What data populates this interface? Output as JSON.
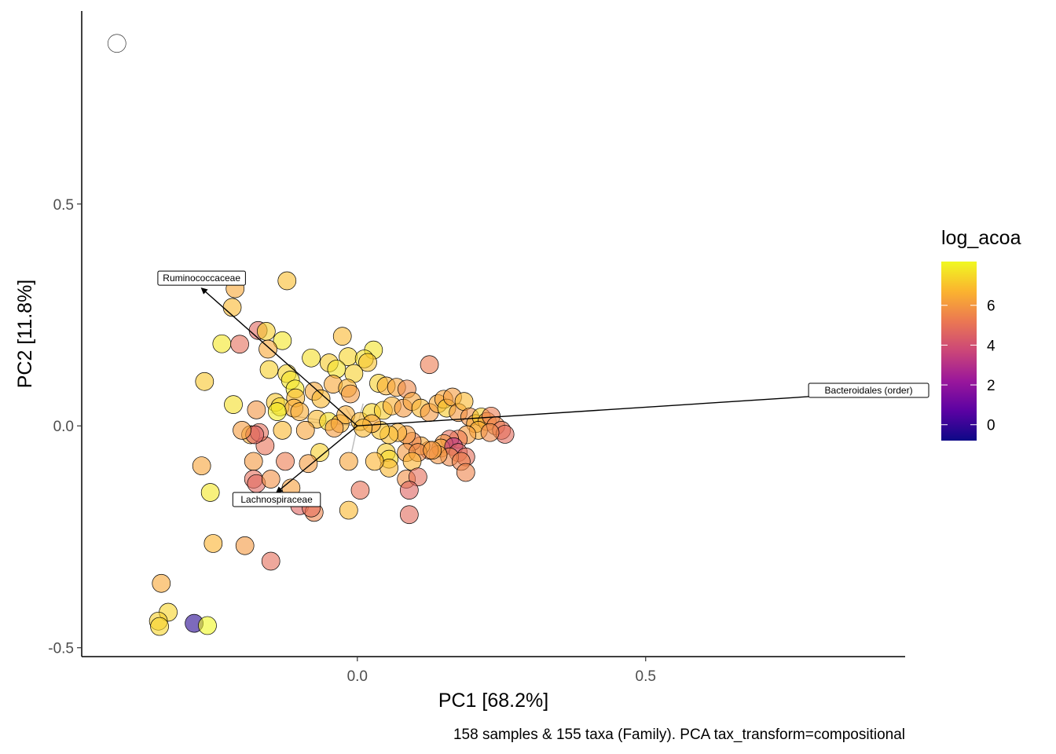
{
  "chart_data": {
    "type": "scatter",
    "title": "",
    "xlabel": "PC1 [68.2%]",
    "ylabel": "PC2 [11.8%]",
    "caption": "158 samples & 155 taxa (Family). PCA tax_transform=compositional",
    "xlim": [
      -0.478,
      0.95
    ],
    "ylim": [
      -0.52,
      0.935
    ],
    "x_ticks": [
      0.0,
      0.5
    ],
    "x_tick_labels": [
      "0.0",
      "0.5"
    ],
    "y_ticks": [
      -0.5,
      0.0,
      0.5
    ],
    "y_tick_labels": [
      "-0.5",
      "0.0",
      "0.5"
    ],
    "grid": false,
    "legend": {
      "title": "log_acoa",
      "position": "right",
      "range": [
        -0.8,
        8.2
      ],
      "ticks": [
        0,
        2,
        4,
        6
      ],
      "tick_labels": [
        "0",
        "2",
        "4",
        "6"
      ],
      "colors": [
        "#0D0887",
        "#5B02A3",
        "#9A179B",
        "#CB4678",
        "#EB7852",
        "#FBB32F",
        "#F0F921"
      ]
    },
    "loadings": [
      {
        "label": "Bacteroidales (order)",
        "x": 0.95,
        "y": 0.08
      },
      {
        "label": "Ruminococcaceae",
        "x": -0.27,
        "y": 0.31
      },
      {
        "label": "Lachnospiraceae",
        "x": -0.14,
        "y": -0.15
      }
    ],
    "minor_loadings": [
      {
        "x": -0.15,
        "y": 0.03
      },
      {
        "x": -0.02,
        "y": 0.04
      },
      {
        "x": -0.01,
        "y": -0.06
      },
      {
        "x": 0.01,
        "y": 0.05
      },
      {
        "x": -0.09,
        "y": 0.01
      }
    ],
    "points": [
      {
        "x": -0.417,
        "y": 0.862,
        "c": null
      },
      {
        "x": -0.122,
        "y": 0.327,
        "c": 6.9
      },
      {
        "x": -0.212,
        "y": 0.309,
        "c": 6.4
      },
      {
        "x": -0.217,
        "y": 0.267,
        "c": 6.8
      },
      {
        "x": -0.172,
        "y": 0.215,
        "c": 4.7
      },
      {
        "x": -0.158,
        "y": 0.213,
        "c": 7.3
      },
      {
        "x": -0.13,
        "y": 0.192,
        "c": 7.8
      },
      {
        "x": -0.235,
        "y": 0.185,
        "c": 7.8
      },
      {
        "x": -0.204,
        "y": 0.184,
        "c": 4.9
      },
      {
        "x": -0.155,
        "y": 0.173,
        "c": 6.4
      },
      {
        "x": -0.026,
        "y": 0.202,
        "c": 6.8
      },
      {
        "x": 0.028,
        "y": 0.171,
        "c": 7.7
      },
      {
        "x": 0.125,
        "y": 0.138,
        "c": 5.3
      },
      {
        "x": -0.08,
        "y": 0.153,
        "c": 7.6
      },
      {
        "x": -0.049,
        "y": 0.142,
        "c": 7.2
      },
      {
        "x": -0.016,
        "y": 0.156,
        "c": 7.4
      },
      {
        "x": 0.012,
        "y": 0.151,
        "c": 7.6
      },
      {
        "x": 0.018,
        "y": 0.143,
        "c": 7.0
      },
      {
        "x": -0.153,
        "y": 0.127,
        "c": 7.3
      },
      {
        "x": -0.122,
        "y": 0.118,
        "c": 7.4
      },
      {
        "x": -0.036,
        "y": 0.128,
        "c": 7.7
      },
      {
        "x": -0.006,
        "y": 0.118,
        "c": 7.3
      },
      {
        "x": -0.116,
        "y": 0.103,
        "c": 7.7
      },
      {
        "x": -0.108,
        "y": 0.083,
        "c": 7.8
      },
      {
        "x": -0.107,
        "y": 0.063,
        "c": 6.8
      },
      {
        "x": -0.142,
        "y": 0.053,
        "c": 7.1
      },
      {
        "x": -0.134,
        "y": 0.043,
        "c": 7.5
      },
      {
        "x": -0.11,
        "y": 0.04,
        "c": 6.5
      },
      {
        "x": -0.075,
        "y": 0.078,
        "c": 6.4
      },
      {
        "x": -0.063,
        "y": 0.061,
        "c": 6.8
      },
      {
        "x": -0.042,
        "y": 0.094,
        "c": 6.4
      },
      {
        "x": -0.017,
        "y": 0.085,
        "c": 6.7
      },
      {
        "x": -0.012,
        "y": 0.072,
        "c": 6.0
      },
      {
        "x": 0.037,
        "y": 0.096,
        "c": 7.3
      },
      {
        "x": 0.05,
        "y": 0.09,
        "c": 6.6
      },
      {
        "x": 0.068,
        "y": 0.087,
        "c": 6.3
      },
      {
        "x": 0.086,
        "y": 0.083,
        "c": 5.6
      },
      {
        "x": -0.265,
        "y": 0.1,
        "c": 7.1
      },
      {
        "x": -0.215,
        "y": 0.048,
        "c": 7.6
      },
      {
        "x": -0.175,
        "y": 0.036,
        "c": 5.9
      },
      {
        "x": -0.139,
        "y": 0.032,
        "c": 7.9
      },
      {
        "x": -0.1,
        "y": 0.032,
        "c": 6.5
      },
      {
        "x": -0.07,
        "y": 0.015,
        "c": 6.8
      },
      {
        "x": -0.05,
        "y": 0.01,
        "c": 7.6
      },
      {
        "x": -0.03,
        "y": 0.005,
        "c": 6.7
      },
      {
        "x": -0.02,
        "y": 0.025,
        "c": 6.5
      },
      {
        "x": 0.005,
        "y": 0.01,
        "c": 6.8
      },
      {
        "x": 0.025,
        "y": 0.03,
        "c": 7.4
      },
      {
        "x": 0.045,
        "y": 0.035,
        "c": 7.2
      },
      {
        "x": 0.06,
        "y": 0.045,
        "c": 6.6
      },
      {
        "x": 0.08,
        "y": 0.04,
        "c": 6.0
      },
      {
        "x": 0.095,
        "y": 0.055,
        "c": 6.3
      },
      {
        "x": 0.11,
        "y": 0.04,
        "c": 6.8
      },
      {
        "x": 0.125,
        "y": 0.03,
        "c": 6.0
      },
      {
        "x": 0.14,
        "y": 0.05,
        "c": 6.4
      },
      {
        "x": 0.15,
        "y": 0.06,
        "c": 6.3
      },
      {
        "x": 0.155,
        "y": 0.04,
        "c": 7.2
      },
      {
        "x": 0.165,
        "y": 0.065,
        "c": 6.1
      },
      {
        "x": 0.175,
        "y": 0.03,
        "c": 6.0
      },
      {
        "x": 0.185,
        "y": 0.055,
        "c": 6.8
      },
      {
        "x": 0.195,
        "y": 0.02,
        "c": 5.8
      },
      {
        "x": 0.205,
        "y": 0.005,
        "c": 6.5
      },
      {
        "x": 0.215,
        "y": 0.02,
        "c": 7.3
      },
      {
        "x": 0.225,
        "y": 0.01,
        "c": 6.2
      },
      {
        "x": 0.232,
        "y": 0.022,
        "c": 5.3
      },
      {
        "x": 0.24,
        "y": 0.0,
        "c": 5.6
      },
      {
        "x": 0.25,
        "y": -0.01,
        "c": 5.0
      },
      {
        "x": 0.256,
        "y": -0.019,
        "c": 4.8
      },
      {
        "x": 0.21,
        "y": -0.01,
        "c": 6.5
      },
      {
        "x": 0.23,
        "y": -0.015,
        "c": 5.6
      },
      {
        "x": 0.19,
        "y": -0.02,
        "c": 6.1
      },
      {
        "x": 0.175,
        "y": -0.03,
        "c": 5.2
      },
      {
        "x": 0.16,
        "y": -0.03,
        "c": 4.9
      },
      {
        "x": 0.15,
        "y": -0.04,
        "c": 5.9
      },
      {
        "x": 0.145,
        "y": -0.05,
        "c": 6.3
      },
      {
        "x": 0.167,
        "y": -0.047,
        "c": 3.2
      },
      {
        "x": 0.175,
        "y": -0.06,
        "c": 4.6
      },
      {
        "x": 0.188,
        "y": -0.07,
        "c": 4.9
      },
      {
        "x": 0.16,
        "y": -0.07,
        "c": 5.6
      },
      {
        "x": 0.14,
        "y": -0.065,
        "c": 5.9
      },
      {
        "x": 0.125,
        "y": -0.055,
        "c": 5.3
      },
      {
        "x": 0.11,
        "y": -0.045,
        "c": 6.4
      },
      {
        "x": 0.095,
        "y": -0.035,
        "c": 5.4
      },
      {
        "x": 0.085,
        "y": -0.02,
        "c": 6.1
      },
      {
        "x": 0.07,
        "y": -0.015,
        "c": 6.6
      },
      {
        "x": 0.055,
        "y": -0.02,
        "c": 6.9
      },
      {
        "x": 0.04,
        "y": -0.01,
        "c": 7.0
      },
      {
        "x": 0.025,
        "y": 0.005,
        "c": 6.3
      },
      {
        "x": 0.01,
        "y": -0.005,
        "c": 6.8
      },
      {
        "x": 0.05,
        "y": -0.06,
        "c": 7.2
      },
      {
        "x": 0.055,
        "y": -0.075,
        "c": 7.5
      },
      {
        "x": 0.085,
        "y": -0.06,
        "c": 6.0
      },
      {
        "x": 0.105,
        "y": -0.06,
        "c": 5.6
      },
      {
        "x": 0.13,
        "y": -0.055,
        "c": 6.2
      },
      {
        "x": 0.095,
        "y": -0.08,
        "c": 6.7
      },
      {
        "x": 0.055,
        "y": -0.095,
        "c": 6.8
      },
      {
        "x": 0.085,
        "y": -0.12,
        "c": 5.8
      },
      {
        "x": 0.105,
        "y": -0.115,
        "c": 4.9
      },
      {
        "x": 0.18,
        "y": -0.08,
        "c": 5.4
      },
      {
        "x": 0.188,
        "y": -0.105,
        "c": 5.5
      },
      {
        "x": 0.09,
        "y": -0.145,
        "c": 4.6
      },
      {
        "x": 0.09,
        "y": -0.2,
        "c": 4.8
      },
      {
        "x": 0.03,
        "y": -0.08,
        "c": 6.7
      },
      {
        "x": -0.015,
        "y": -0.08,
        "c": 6.3
      },
      {
        "x": 0.005,
        "y": -0.145,
        "c": 5.0
      },
      {
        "x": -0.015,
        "y": -0.19,
        "c": 6.8
      },
      {
        "x": -0.065,
        "y": -0.06,
        "c": 7.3
      },
      {
        "x": -0.085,
        "y": -0.085,
        "c": 6.1
      },
      {
        "x": -0.125,
        "y": -0.08,
        "c": 5.3
      },
      {
        "x": -0.16,
        "y": -0.045,
        "c": 5.0
      },
      {
        "x": -0.185,
        "y": -0.02,
        "c": 6.5
      },
      {
        "x": -0.17,
        "y": -0.015,
        "c": 4.9
      },
      {
        "x": -0.178,
        "y": -0.02,
        "c": 4.5
      },
      {
        "x": -0.2,
        "y": -0.01,
        "c": 6.1
      },
      {
        "x": -0.13,
        "y": -0.01,
        "c": 6.8
      },
      {
        "x": -0.09,
        "y": -0.01,
        "c": 6.3
      },
      {
        "x": -0.04,
        "y": -0.005,
        "c": 6.1
      },
      {
        "x": -0.18,
        "y": -0.08,
        "c": 6.0
      },
      {
        "x": -0.27,
        "y": -0.09,
        "c": 6.3
      },
      {
        "x": -0.18,
        "y": -0.12,
        "c": 4.9
      },
      {
        "x": -0.175,
        "y": -0.13,
        "c": 4.7
      },
      {
        "x": -0.15,
        "y": -0.12,
        "c": 5.8
      },
      {
        "x": -0.115,
        "y": -0.14,
        "c": 6.2
      },
      {
        "x": -0.255,
        "y": -0.15,
        "c": 7.8
      },
      {
        "x": -0.1,
        "y": -0.18,
        "c": 4.6
      },
      {
        "x": -0.075,
        "y": -0.195,
        "c": 5.5
      },
      {
        "x": -0.08,
        "y": -0.185,
        "c": 4.9
      },
      {
        "x": -0.25,
        "y": -0.265,
        "c": 6.7
      },
      {
        "x": -0.195,
        "y": -0.27,
        "c": 6.0
      },
      {
        "x": -0.15,
        "y": -0.305,
        "c": 4.9
      },
      {
        "x": -0.34,
        "y": -0.355,
        "c": 6.4
      },
      {
        "x": -0.328,
        "y": -0.42,
        "c": 7.4
      },
      {
        "x": -0.345,
        "y": -0.44,
        "c": 7.3
      },
      {
        "x": -0.343,
        "y": -0.452,
        "c": 7.4
      },
      {
        "x": -0.283,
        "y": -0.445,
        "c": -0.3
      },
      {
        "x": -0.26,
        "y": -0.45,
        "c": 8.2
      }
    ]
  }
}
